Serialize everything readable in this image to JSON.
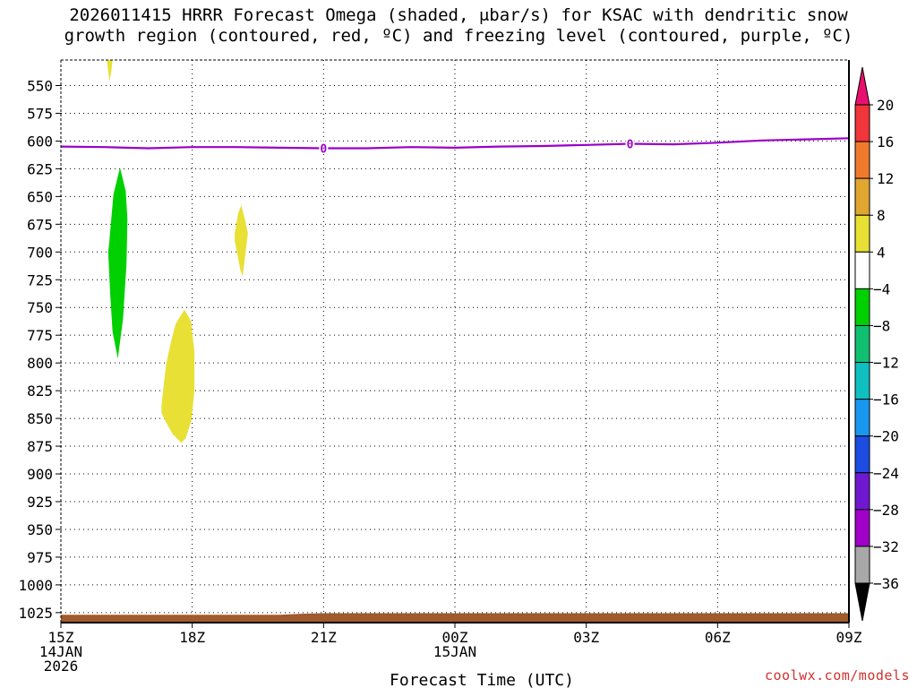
{
  "title_line1": "2026011415 HRRR Forecast Omega (shaded, μbar/s) for KSAC with dendritic snow",
  "title_line2": "growth region (contoured, red, ºC) and freezing level (contoured, purple, ºC)",
  "credit": "coolwx.com/models",
  "chart_data": {
    "type": "heatmap",
    "xlabel": "Forecast Time (UTC)",
    "x_ticks": [
      {
        "hour": 0,
        "lines": [
          "15Z",
          "14JAN",
          "2026"
        ]
      },
      {
        "hour": 3,
        "lines": [
          "18Z"
        ]
      },
      {
        "hour": 6,
        "lines": [
          "21Z"
        ]
      },
      {
        "hour": 9,
        "lines": [
          "00Z",
          "15JAN"
        ]
      },
      {
        "hour": 12,
        "lines": [
          "03Z"
        ]
      },
      {
        "hour": 15,
        "lines": [
          "06Z"
        ]
      },
      {
        "hour": 18,
        "lines": [
          "09Z"
        ]
      }
    ],
    "xlim_hours": [
      0,
      18
    ],
    "ylabel": "",
    "y_ticks": [
      550,
      575,
      600,
      625,
      650,
      675,
      700,
      725,
      750,
      775,
      800,
      825,
      850,
      875,
      900,
      925,
      950,
      975,
      1000,
      1025
    ],
    "ylim_mb": [
      527,
      1034
    ],
    "grid": true,
    "freezing_level": {
      "color": "#9b00c8",
      "label": "0",
      "label_hours": [
        6.0,
        13.0
      ],
      "points": [
        [
          0,
          605
        ],
        [
          1,
          605.5
        ],
        [
          2,
          606.5
        ],
        [
          3,
          605.5
        ],
        [
          4,
          605.5
        ],
        [
          5,
          606
        ],
        [
          6,
          606.5
        ],
        [
          7,
          606.5
        ],
        [
          8,
          605.5
        ],
        [
          9,
          606
        ],
        [
          10,
          605
        ],
        [
          11,
          604.5
        ],
        [
          12,
          603.5
        ],
        [
          13,
          602.5
        ],
        [
          14,
          603
        ],
        [
          15,
          601.5
        ],
        [
          16,
          599.5
        ],
        [
          17,
          598.5
        ],
        [
          18,
          597.5
        ]
      ]
    },
    "omega_features": [
      {
        "value_range": [
          4,
          8
        ],
        "color": "#e8e034",
        "polygon": [
          [
            1.05,
            527
          ],
          [
            1.18,
            527
          ],
          [
            1.15,
            538
          ],
          [
            1.11,
            546
          ]
        ]
      },
      {
        "value_range": [
          -8,
          -4
        ],
        "color": "#00d000",
        "polygon": [
          [
            1.1,
            693
          ],
          [
            1.2,
            648
          ],
          [
            1.35,
            624
          ],
          [
            1.48,
            645
          ],
          [
            1.52,
            670
          ],
          [
            1.5,
            710
          ],
          [
            1.42,
            760
          ],
          [
            1.3,
            796
          ],
          [
            1.18,
            772
          ],
          [
            1.13,
            740
          ],
          [
            1.08,
            700
          ]
        ]
      },
      {
        "value_range": [
          4,
          8
        ],
        "color": "#e8e034",
        "polygon": [
          [
            3.97,
            683
          ],
          [
            4.05,
            665
          ],
          [
            4.12,
            658
          ],
          [
            4.2,
            670
          ],
          [
            4.27,
            683
          ],
          [
            4.22,
            700
          ],
          [
            4.15,
            722
          ],
          [
            4.1,
            716
          ],
          [
            4.02,
            700
          ],
          [
            3.97,
            690
          ]
        ]
      },
      {
        "value_range": [
          4,
          8
        ],
        "color": "#e8e034",
        "polygon": [
          [
            2.3,
            838
          ],
          [
            2.4,
            802
          ],
          [
            2.52,
            780
          ],
          [
            2.62,
            765
          ],
          [
            2.82,
            752
          ],
          [
            2.97,
            762
          ],
          [
            3.05,
            790
          ],
          [
            3.05,
            825
          ],
          [
            2.98,
            852
          ],
          [
            2.85,
            868
          ],
          [
            2.75,
            872
          ],
          [
            2.55,
            864
          ],
          [
            2.38,
            852
          ],
          [
            2.3,
            845
          ]
        ]
      }
    ],
    "terrain": {
      "color": "#a05a2c",
      "top_points": [
        [
          0,
          1027
        ],
        [
          5,
          1027
        ],
        [
          5.5,
          1026
        ],
        [
          6,
          1025.5
        ],
        [
          18,
          1025.5
        ]
      ],
      "bottom_mb": 1034
    },
    "colorbar": {
      "levels": [
        20,
        16,
        12,
        8,
        4,
        -4,
        -8,
        -12,
        -16,
        -20,
        -24,
        -28,
        -32,
        -36
      ],
      "colors": [
        "#e8106e",
        "#f0353b",
        "#f07a2c",
        "#e0a630",
        "#e8e034",
        "#ffffff",
        "#00d000",
        "#10c070",
        "#10c0c0",
        "#1898f0",
        "#1c4ce0",
        "#7018d0",
        "#a000c8",
        "#a8a8a8",
        "#000000"
      ]
    }
  }
}
